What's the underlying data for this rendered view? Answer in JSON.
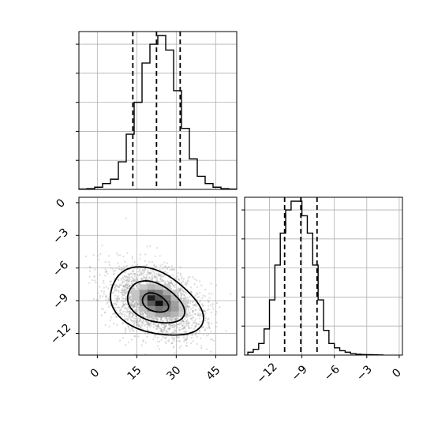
{
  "chart_data": {
    "type": "corner",
    "panels": [
      {
        "id": "hist-x",
        "type": "histogram",
        "xlim": [
          -7,
          53
        ],
        "ylim": [
          0,
          1060
        ],
        "yticks": [
          200,
          400,
          600,
          800,
          1000
        ],
        "grid": true,
        "bin_edges": [
          -7,
          -4,
          -1,
          2,
          5,
          8,
          11,
          14,
          17,
          20,
          23,
          26,
          29,
          32,
          35,
          38,
          41,
          44,
          47,
          50,
          53
        ],
        "counts": [
          2,
          5,
          15,
          40,
          70,
          190,
          380,
          600,
          870,
          1000,
          1060,
          960,
          680,
          420,
          210,
          90,
          40,
          15,
          5,
          2
        ],
        "quantiles": [
          13.5,
          22.5,
          31.5
        ]
      },
      {
        "id": "joint-xy",
        "type": "2d-density",
        "xlim": [
          -7,
          53
        ],
        "ylim": [
          -14,
          0.5
        ],
        "xticks": [
          0,
          15,
          30,
          45
        ],
        "yticks": [
          0,
          -3,
          -6,
          -9,
          -12
        ],
        "grid": true,
        "center": [
          22,
          -9.2
        ],
        "contour_levels": 3
      },
      {
        "id": "hist-y",
        "type": "histogram",
        "xlim": [
          -14.3,
          0.3
        ],
        "ylim": [
          0,
          1060
        ],
        "xticks": [
          -12,
          -9,
          -6,
          -3,
          0
        ],
        "grid": true,
        "bin_edges": [
          -14,
          -13.5,
          -13,
          -12.5,
          -12,
          -11.5,
          -11,
          -10.5,
          -10,
          -9.5,
          -9,
          -8.5,
          -8,
          -7.5,
          -7,
          -6.5,
          -6,
          -5.5,
          -5,
          -4.5,
          -4,
          -3.5,
          -3,
          -2.5,
          -2,
          -1.5
        ],
        "counts": [
          20,
          40,
          80,
          180,
          380,
          620,
          840,
          1000,
          1060,
          1060,
          960,
          840,
          620,
          380,
          170,
          80,
          50,
          30,
          20,
          10,
          6,
          4,
          3,
          2,
          1
        ],
        "quantiles": [
          -10.6,
          -9.1,
          -7.6
        ]
      }
    ]
  }
}
